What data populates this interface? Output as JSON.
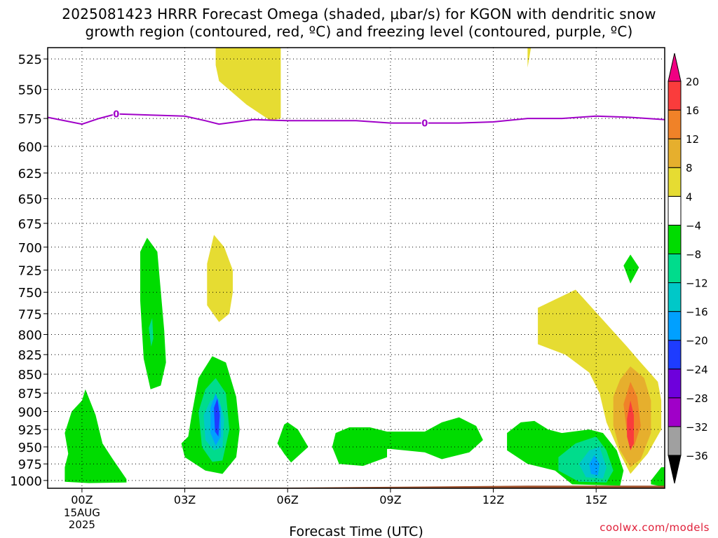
{
  "title_line1": "2025081423 HRRR Forecast Omega (shaded, μbar/s) for KGON with dendritic snow",
  "title_line2": "growth region (contoured, red, ºC) and freezing level (contoured, purple, ºC)",
  "watermark": "coolwx.com/models",
  "chart_data": {
    "type": "contour",
    "xlabel": "Forecast Time (UTC)",
    "ylabel": "",
    "x_unit": "hours from 2025-08-15 00Z",
    "xlim": [
      -1,
      17
    ],
    "x_ticks": [
      {
        "x": 0,
        "label": "00Z",
        "sub": [
          "15AUG",
          "2025"
        ]
      },
      {
        "x": 3,
        "label": "03Z",
        "sub": []
      },
      {
        "x": 6,
        "label": "06Z",
        "sub": []
      },
      {
        "x": 9,
        "label": "09Z",
        "sub": []
      },
      {
        "x": 12,
        "label": "12Z",
        "sub": []
      },
      {
        "x": 15,
        "label": "15Z",
        "sub": []
      }
    ],
    "ylim": [
      1012,
      516
    ],
    "y_scale": "log",
    "y_ticks": [
      525,
      550,
      575,
      600,
      625,
      650,
      675,
      700,
      725,
      750,
      775,
      800,
      825,
      850,
      875,
      900,
      925,
      950,
      975,
      1000
    ],
    "grid": true,
    "colorbar": {
      "levels": [
        -36,
        -32,
        -28,
        -24,
        -20,
        -16,
        -12,
        -8,
        -4,
        4,
        8,
        12,
        16,
        20
      ],
      "colors": [
        "#000000",
        "#a0a0a0",
        "#a000c8",
        "#6e00dc",
        "#1e3cff",
        "#00a0ff",
        "#00c8c8",
        "#00dc8c",
        "#00dc00",
        "#ffffff",
        "#e6dc32",
        "#e6af2d",
        "#f08228",
        "#fa3c3c",
        "#f00082"
      ]
    },
    "freezing_level": {
      "color": "#a000c8",
      "label": "0",
      "label_x": [
        1,
        10
      ],
      "x": [
        -1,
        0,
        0.5,
        1,
        2,
        3,
        3.6,
        4,
        4.5,
        5,
        6,
        7,
        8,
        9,
        10,
        11,
        12,
        13,
        14,
        15,
        16,
        17
      ],
      "p": [
        574,
        580,
        575,
        571,
        572,
        573,
        577,
        580,
        578,
        576,
        577,
        577,
        577,
        579,
        579,
        579,
        578,
        575,
        575,
        573,
        574,
        576
      ]
    },
    "omega_regions": [
      {
        "level": 4,
        "color": "#e6dc32",
        "points": [
          [
            3.9,
            516
          ],
          [
            5.8,
            516
          ],
          [
            5.8,
            575
          ],
          [
            5.5,
            577
          ],
          [
            4.8,
            563
          ],
          [
            4.0,
            543
          ],
          [
            3.9,
            530
          ]
        ]
      },
      {
        "level": 4,
        "color": "#e6dc32",
        "points": [
          [
            13.0,
            516
          ],
          [
            13.1,
            516
          ],
          [
            13.0,
            532
          ]
        ]
      },
      {
        "level": 4,
        "color": "#e6dc32",
        "points": [
          [
            3.65,
            718
          ],
          [
            3.85,
            687
          ],
          [
            4.15,
            700
          ],
          [
            4.4,
            725
          ],
          [
            4.4,
            750
          ],
          [
            4.3,
            775
          ],
          [
            4.0,
            785
          ],
          [
            3.65,
            765
          ]
        ]
      },
      {
        "level": 4,
        "color": "#e6dc32",
        "points": [
          [
            13.3,
            768
          ],
          [
            14.4,
            747
          ],
          [
            15.1,
            778
          ],
          [
            15.9,
            815
          ],
          [
            16.3,
            835
          ],
          [
            16.8,
            860
          ],
          [
            16.9,
            885
          ],
          [
            16.9,
            925
          ],
          [
            16.5,
            960
          ],
          [
            16.0,
            990
          ],
          [
            15.7,
            960
          ],
          [
            15.3,
            915
          ],
          [
            15.1,
            875
          ],
          [
            14.8,
            848
          ],
          [
            14.1,
            825
          ],
          [
            13.3,
            812
          ]
        ]
      },
      {
        "level": 8,
        "color": "#e6af2d",
        "points": [
          [
            15.5,
            880
          ],
          [
            15.7,
            857
          ],
          [
            16.0,
            840
          ],
          [
            16.4,
            855
          ],
          [
            16.6,
            885
          ],
          [
            16.6,
            930
          ],
          [
            16.3,
            968
          ],
          [
            16.0,
            980
          ],
          [
            15.7,
            955
          ],
          [
            15.5,
            920
          ]
        ]
      },
      {
        "level": 12,
        "color": "#f08228",
        "points": [
          [
            15.8,
            890
          ],
          [
            16.0,
            860
          ],
          [
            16.2,
            880
          ],
          [
            16.3,
            920
          ],
          [
            16.1,
            950
          ],
          [
            15.9,
            930
          ]
        ]
      },
      {
        "level": 16,
        "color": "#fa3c3c",
        "points": [
          [
            15.9,
            910
          ],
          [
            16.0,
            885
          ],
          [
            16.1,
            905
          ],
          [
            16.1,
            945
          ],
          [
            16.0,
            955
          ],
          [
            15.9,
            935
          ]
        ]
      },
      {
        "level": -4,
        "color": "#00dc00",
        "points": [
          [
            1.7,
            705
          ],
          [
            1.9,
            690
          ],
          [
            2.2,
            705
          ],
          [
            2.4,
            795
          ],
          [
            2.45,
            835
          ],
          [
            2.3,
            865
          ],
          [
            2.0,
            870
          ],
          [
            1.8,
            830
          ],
          [
            1.7,
            760
          ]
        ]
      },
      {
        "level": -8,
        "color": "#00dc8c",
        "points": [
          [
            1.95,
            792
          ],
          [
            2.05,
            780
          ],
          [
            2.08,
            805
          ],
          [
            2.02,
            815
          ]
        ]
      },
      {
        "level": -4,
        "color": "#00dc00",
        "points": [
          [
            3.2,
            905
          ],
          [
            3.4,
            855
          ],
          [
            3.8,
            827
          ],
          [
            4.2,
            835
          ],
          [
            4.5,
            880
          ],
          [
            4.6,
            925
          ],
          [
            4.5,
            965
          ],
          [
            4.1,
            990
          ],
          [
            3.6,
            985
          ],
          [
            3.0,
            965
          ],
          [
            2.9,
            945
          ],
          [
            3.1,
            935
          ]
        ]
      },
      {
        "level": -8,
        "color": "#00dc8c",
        "points": [
          [
            3.4,
            900
          ],
          [
            3.6,
            870
          ],
          [
            3.9,
            855
          ],
          [
            4.2,
            875
          ],
          [
            4.3,
            925
          ],
          [
            4.1,
            970
          ],
          [
            3.8,
            972
          ],
          [
            3.5,
            950
          ]
        ]
      },
      {
        "level": -12,
        "color": "#00c8c8",
        "points": [
          [
            3.55,
            905
          ],
          [
            3.75,
            885
          ],
          [
            4.0,
            882
          ],
          [
            4.15,
            910
          ],
          [
            4.1,
            950
          ],
          [
            3.85,
            955
          ],
          [
            3.6,
            940
          ]
        ]
      },
      {
        "level": -16,
        "color": "#00a0ff",
        "points": [
          [
            3.75,
            895
          ],
          [
            3.9,
            875
          ],
          [
            4.05,
            895
          ],
          [
            4.05,
            935
          ],
          [
            3.9,
            948
          ],
          [
            3.75,
            930
          ]
        ]
      },
      {
        "level": -20,
        "color": "#1e3cff",
        "points": [
          [
            3.85,
            895
          ],
          [
            3.95,
            882
          ],
          [
            4.02,
            905
          ],
          [
            3.98,
            935
          ],
          [
            3.88,
            928
          ]
        ]
      },
      {
        "level": -4,
        "color": "#00dc00",
        "points": [
          [
            -0.5,
            930
          ],
          [
            -0.3,
            900
          ],
          [
            0,
            885
          ],
          [
            0.1,
            870
          ],
          [
            0.4,
            905
          ],
          [
            0.6,
            945
          ],
          [
            0.9,
            968
          ],
          [
            1.3,
            998
          ],
          [
            1.3,
            1003
          ],
          [
            0.2,
            1004
          ],
          [
            -0.5,
            1002
          ],
          [
            -0.5,
            980
          ],
          [
            -0.4,
            960
          ]
        ]
      },
      {
        "level": -4,
        "color": "#00dc00",
        "points": [
          [
            5.7,
            945
          ],
          [
            5.9,
            918
          ],
          [
            6.0,
            915
          ],
          [
            6.3,
            925
          ],
          [
            6.6,
            950
          ],
          [
            6.1,
            973
          ],
          [
            5.9,
            960
          ]
        ]
      },
      {
        "level": -4,
        "color": "#00dc00",
        "points": [
          [
            7.4,
            930
          ],
          [
            7.8,
            922
          ],
          [
            8.4,
            922
          ],
          [
            8.9,
            928
          ],
          [
            10.0,
            928
          ],
          [
            10.5,
            915
          ],
          [
            11.0,
            908
          ],
          [
            11.5,
            920
          ],
          [
            11.7,
            940
          ],
          [
            11.3,
            958
          ],
          [
            10.5,
            968
          ],
          [
            10.0,
            958
          ],
          [
            9.0,
            953
          ],
          [
            8.9,
            953
          ],
          [
            8.9,
            965
          ],
          [
            8.2,
            978
          ],
          [
            7.5,
            975
          ],
          [
            7.3,
            950
          ]
        ]
      },
      {
        "level": -4,
        "color": "#00dc00",
        "points": [
          [
            12.4,
            930
          ],
          [
            12.8,
            915
          ],
          [
            13.2,
            913
          ],
          [
            13.6,
            925
          ],
          [
            14.0,
            930
          ],
          [
            14.8,
            925
          ],
          [
            15.2,
            930
          ],
          [
            15.6,
            955
          ],
          [
            15.8,
            985
          ],
          [
            15.7,
            1008
          ],
          [
            14.3,
            1006
          ],
          [
            13.8,
            985
          ],
          [
            13.0,
            975
          ],
          [
            12.4,
            955
          ]
        ]
      },
      {
        "level": -8,
        "color": "#00dc8c",
        "points": [
          [
            13.9,
            965
          ],
          [
            14.4,
            945
          ],
          [
            15.0,
            935
          ],
          [
            15.3,
            955
          ],
          [
            15.5,
            985
          ],
          [
            15.3,
            1003
          ],
          [
            14.5,
            1002
          ],
          [
            13.9,
            985
          ]
        ]
      },
      {
        "level": -12,
        "color": "#00c8c8",
        "points": [
          [
            14.5,
            975
          ],
          [
            14.8,
            955
          ],
          [
            15.1,
            950
          ],
          [
            15.3,
            980
          ],
          [
            15.2,
            997
          ],
          [
            14.7,
            995
          ]
        ]
      },
      {
        "level": -16,
        "color": "#00a0ff",
        "points": [
          [
            14.8,
            975
          ],
          [
            14.95,
            962
          ],
          [
            15.1,
            975
          ],
          [
            15.05,
            992
          ],
          [
            14.85,
            990
          ]
        ]
      },
      {
        "level": -4,
        "color": "#00dc00",
        "points": [
          [
            15.8,
            720
          ],
          [
            16.0,
            708
          ],
          [
            16.25,
            722
          ],
          [
            16.0,
            740
          ]
        ]
      },
      {
        "level": -4,
        "color": "#00dc00",
        "points": [
          [
            16.6,
            1000
          ],
          [
            16.9,
            980
          ],
          [
            17.0,
            980
          ],
          [
            17.0,
            1010
          ],
          [
            16.6,
            1006
          ]
        ]
      }
    ],
    "terrain": {
      "color": "#a0522d",
      "surface_p": [
        [
          -1,
          1012
        ],
        [
          6,
          1011
        ],
        [
          13,
          1008
        ],
        [
          17,
          1008
        ]
      ]
    }
  }
}
